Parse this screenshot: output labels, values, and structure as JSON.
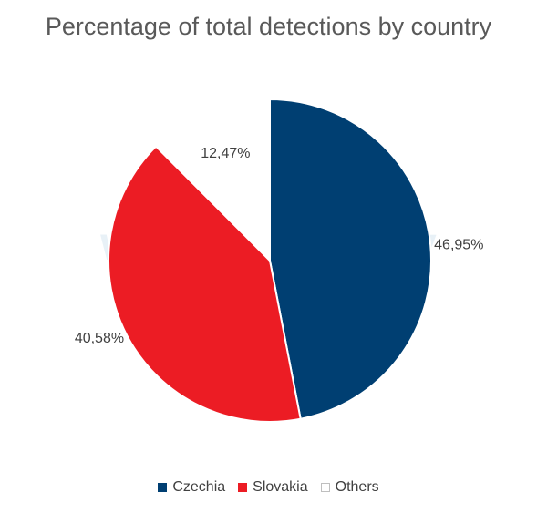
{
  "chart_data": {
    "type": "pie",
    "title": "Percentage of total detections by country",
    "labels": [
      "Czechia",
      "Slovakia",
      "Others"
    ],
    "values": [
      46.95,
      40.58,
      12.47
    ],
    "value_labels": [
      "46,95%",
      "40,58%",
      "12,47%"
    ],
    "colors": [
      "#003f72",
      "#ec1c24",
      "#ffffff"
    ],
    "legend_position": "bottom"
  },
  "watermark": "welivesecurity"
}
